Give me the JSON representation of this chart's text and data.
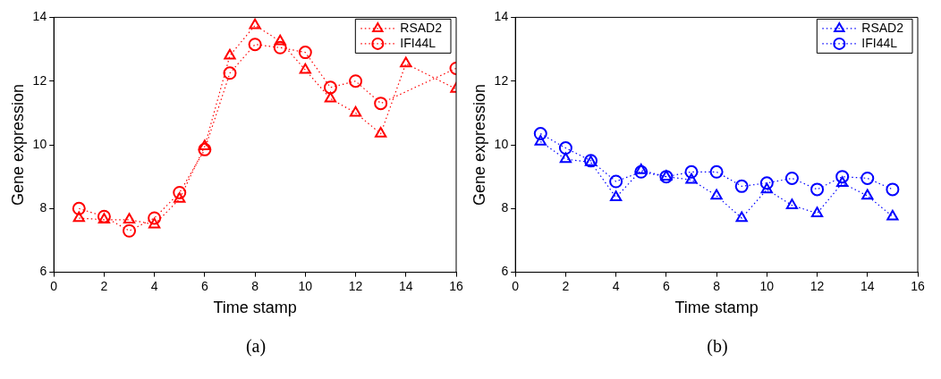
{
  "chart_data": [
    {
      "type": "line",
      "xlabel": "Time stamp",
      "ylabel": "Gene expression",
      "x": [
        1,
        2,
        3,
        4,
        5,
        6,
        7,
        8,
        9,
        10,
        11,
        12,
        13,
        14,
        15,
        16
      ],
      "xlim": [
        0,
        16
      ],
      "xticks": [
        0,
        2,
        4,
        6,
        8,
        10,
        12,
        14,
        16
      ],
      "ylim": [
        6,
        14
      ],
      "yticks": [
        6,
        8,
        10,
        12,
        14
      ],
      "grid": false,
      "legend": "top right",
      "line_style": "dotted",
      "annotations": [
        "(a)"
      ],
      "series": [
        {
          "name": "RSAD2",
          "color": "#ff0000",
          "marker": "triangle",
          "values": [
            7.7,
            7.65,
            7.65,
            7.5,
            8.3,
            9.95,
            12.8,
            13.75,
            13.25,
            12.35,
            11.45,
            11.0,
            10.35,
            12.55,
            null,
            11.75
          ]
        },
        {
          "name": "IFI44L",
          "color": "#ff0000",
          "marker": "circle",
          "values": [
            8.0,
            7.75,
            7.3,
            7.7,
            8.5,
            9.85,
            12.25,
            13.15,
            13.05,
            12.9,
            11.8,
            12.0,
            11.3,
            null,
            null,
            12.4
          ]
        }
      ]
    },
    {
      "type": "line",
      "xlabel": "Time stamp",
      "ylabel": "Gene expression",
      "x": [
        1,
        2,
        3,
        4,
        5,
        6,
        7,
        8,
        9,
        10,
        11,
        12,
        13,
        14,
        15
      ],
      "xlim": [
        0,
        16
      ],
      "xticks": [
        0,
        2,
        4,
        6,
        8,
        10,
        12,
        14,
        16
      ],
      "ylim": [
        6,
        14
      ],
      "yticks": [
        6,
        8,
        10,
        12,
        14
      ],
      "grid": false,
      "legend": "top right",
      "line_style": "dotted",
      "annotations": [
        "(b)"
      ],
      "series": [
        {
          "name": "RSAD2",
          "color": "#0000ff",
          "marker": "triangle",
          "values": [
            10.1,
            9.55,
            9.45,
            8.35,
            9.2,
            9.0,
            8.9,
            8.4,
            7.7,
            8.6,
            8.1,
            7.85,
            8.8,
            8.4,
            7.75
          ]
        },
        {
          "name": "IFI44L",
          "color": "#0000ff",
          "marker": "circle",
          "values": [
            10.35,
            9.9,
            9.5,
            8.85,
            9.15,
            9.0,
            9.15,
            9.15,
            8.7,
            8.8,
            8.95,
            8.6,
            9.0,
            8.95,
            8.6
          ]
        }
      ]
    }
  ]
}
